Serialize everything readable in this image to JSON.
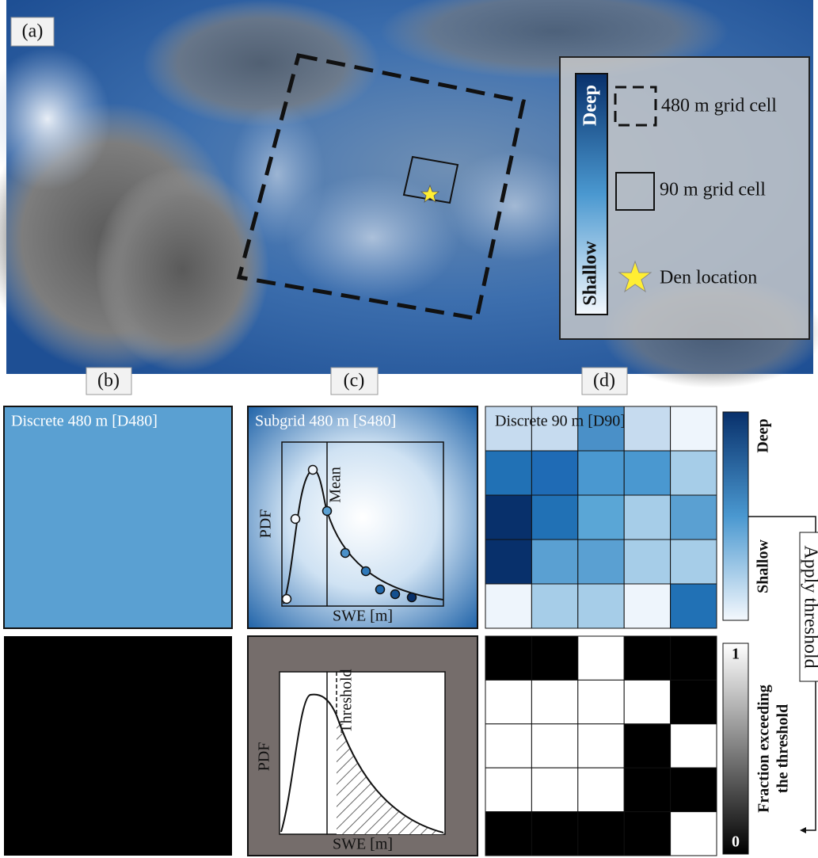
{
  "panel_a": {
    "label": "(a)",
    "legend": {
      "deep": "Deep",
      "shallow": "Shallow",
      "items": [
        "480 m grid cell",
        "90 m grid cell",
        "Den location"
      ]
    }
  },
  "panel_b": {
    "label": "(b)",
    "top_title": "Discrete 480 m [D480]"
  },
  "panel_c": {
    "label": "(c)",
    "top_title": "Subgrid 480 m [S480]",
    "top_plot": {
      "y_label": "PDF",
      "x_label": "SWE [m]",
      "marker": "Mean"
    },
    "bottom_plot": {
      "y_label": "PDF",
      "x_label": "SWE [m]",
      "marker": "Threshold"
    }
  },
  "panel_d": {
    "label": "(d)",
    "top_title": "Discrete 90 m [D90]",
    "colorbar_top": {
      "high": "Deep",
      "low": "Shallow"
    },
    "colorbar_bottom": {
      "high": 1,
      "low": 0,
      "title": [
        "Fraction exceeding",
        "the threshold"
      ]
    }
  },
  "arrow_label": "Apply threshold"
}
